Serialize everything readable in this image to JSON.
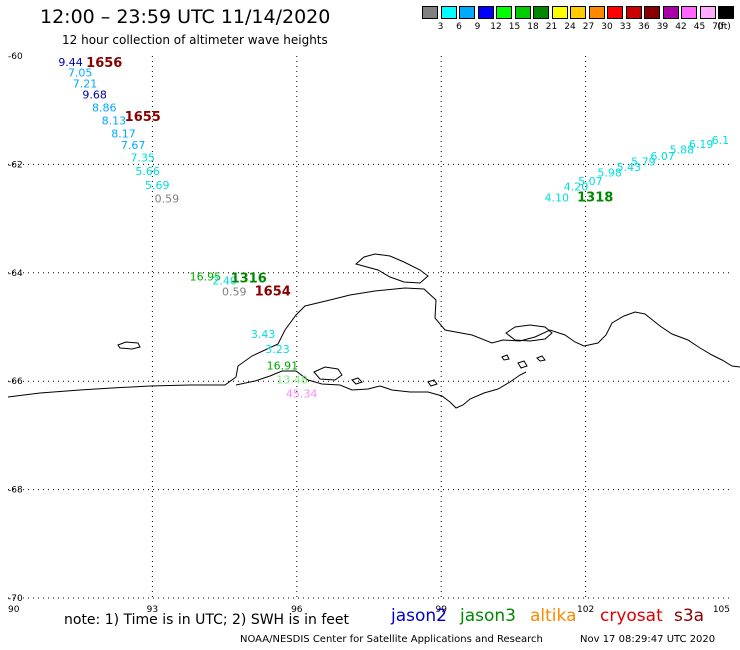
{
  "header": {
    "title": "12:00 – 23:59 UTC 11/14/2020",
    "subtitle": "12 hour collection of altimeter wave heights"
  },
  "legend": {
    "colors": [
      "#808080",
      "#00ffff",
      "#00aaff",
      "#0000ff",
      "#00ff00",
      "#00cc00",
      "#008800",
      "#ffff00",
      "#ffcc00",
      "#ff8800",
      "#ff0000",
      "#cc0000",
      "#880000",
      "#aa00aa",
      "#ff66ff",
      "#ffaaff",
      "#000000"
    ],
    "labels": [
      "3",
      "6",
      "9",
      "12",
      "15",
      "18",
      "21",
      "24",
      "27",
      "30",
      "33",
      "36",
      "39",
      "42",
      "45",
      "70",
      "(ft)"
    ]
  },
  "axes": {
    "x_ticks": [
      "90",
      "93",
      "96",
      "99",
      "102",
      "105"
    ],
    "y_ticks": [
      "-60",
      "-62",
      "-64",
      "-66",
      "-68",
      "-70"
    ]
  },
  "observations": [
    {
      "text": "9.44",
      "color": "#0000aa",
      "lon": 91.3,
      "lat": -60.18
    },
    {
      "text": "7.05",
      "color": "#00aaff",
      "lon": 91.5,
      "lat": -60.38
    },
    {
      "text": "7.21",
      "color": "#00aaff",
      "lon": 91.6,
      "lat": -60.58
    },
    {
      "text": "9.68",
      "color": "#0000aa",
      "lon": 91.8,
      "lat": -60.78
    },
    {
      "text": "8.86",
      "color": "#00aaff",
      "lon": 92.0,
      "lat": -61.02
    },
    {
      "text": "8.13",
      "color": "#00aaff",
      "lon": 92.2,
      "lat": -61.26
    },
    {
      "text": "8.17",
      "color": "#00aaff",
      "lon": 92.4,
      "lat": -61.5
    },
    {
      "text": "7.67",
      "color": "#00aaff",
      "lon": 92.6,
      "lat": -61.72
    },
    {
      "text": "7.35",
      "color": "#00dddd",
      "lon": 92.8,
      "lat": -61.95
    },
    {
      "text": "5.66",
      "color": "#00dddd",
      "lon": 92.9,
      "lat": -62.2
    },
    {
      "text": "5.69",
      "color": "#00dddd",
      "lon": 93.1,
      "lat": -62.45
    },
    {
      "text": "0.59",
      "color": "#808080",
      "lon": 93.3,
      "lat": -62.7
    },
    {
      "text": "16.95",
      "color": "#00aa00",
      "lon": 94.1,
      "lat": -64.14
    },
    {
      "text": "2.40",
      "color": "#00dddd",
      "lon": 94.5,
      "lat": -64.22
    },
    {
      "text": "0.59",
      "color": "#808080",
      "lon": 94.7,
      "lat": -64.42
    },
    {
      "text": "3.43",
      "color": "#00dddd",
      "lon": 95.3,
      "lat": -65.2
    },
    {
      "text": "3.23",
      "color": "#00dddd",
      "lon": 95.6,
      "lat": -65.48
    },
    {
      "text": "16.91",
      "color": "#00aa00",
      "lon": 95.7,
      "lat": -65.78
    },
    {
      "text": "13.48",
      "color": "#88ee88",
      "lon": 95.9,
      "lat": -66.04
    },
    {
      "text": "45.34",
      "color": "#ff88ff",
      "lon": 96.1,
      "lat": -66.3
    },
    {
      "text": "4.10",
      "color": "#00dddd",
      "lon": 101.4,
      "lat": -62.68
    },
    {
      "text": "4.20",
      "color": "#00dddd",
      "lon": 101.8,
      "lat": -62.48
    },
    {
      "text": "5.07",
      "color": "#00dddd",
      "lon": 102.1,
      "lat": -62.38
    },
    {
      "text": "5.98",
      "color": "#00dddd",
      "lon": 102.5,
      "lat": -62.22
    },
    {
      "text": "5.43",
      "color": "#00dddd",
      "lon": 102.9,
      "lat": -62.12
    },
    {
      "text": "5.79",
      "color": "#00dddd",
      "lon": 103.2,
      "lat": -62.02
    },
    {
      "text": "6.07",
      "color": "#00dddd",
      "lon": 103.6,
      "lat": -61.92
    },
    {
      "text": "5.88",
      "color": "#00dddd",
      "lon": 104.0,
      "lat": -61.8
    },
    {
      "text": "6.19",
      "color": "#00dddd",
      "lon": 104.4,
      "lat": -61.7
    },
    {
      "text": "6.1",
      "color": "#00dddd",
      "lon": 104.8,
      "lat": -61.62
    }
  ],
  "times": [
    {
      "text": "1656",
      "color": "#880000",
      "lon": 92.0,
      "lat": -60.2
    },
    {
      "text": "1655",
      "color": "#880000",
      "lon": 92.8,
      "lat": -61.2
    },
    {
      "text": "1316",
      "color": "#008800",
      "lon": 95.0,
      "lat": -64.18
    },
    {
      "text": "1654",
      "color": "#880000",
      "lon": 95.5,
      "lat": -64.42
    },
    {
      "text": "1318",
      "color": "#008800",
      "lon": 102.2,
      "lat": -62.68
    }
  ],
  "footer": {
    "note": "note: 1) Time is in UTC; 2) SWH is in feet",
    "satellites": [
      {
        "name": "jason2",
        "color": "#0000cc"
      },
      {
        "name": "jason3",
        "color": "#008800"
      },
      {
        "name": "altika",
        "color": "#ff8800"
      },
      {
        "name": "cryosat",
        "color": "#dd0000"
      },
      {
        "name": "s3a",
        "color": "#880000"
      }
    ],
    "credit": "NOAA/NESDIS Center for Satellite Applications and Research",
    "date": "Nov 17 08:29:47 UTC 2020"
  }
}
